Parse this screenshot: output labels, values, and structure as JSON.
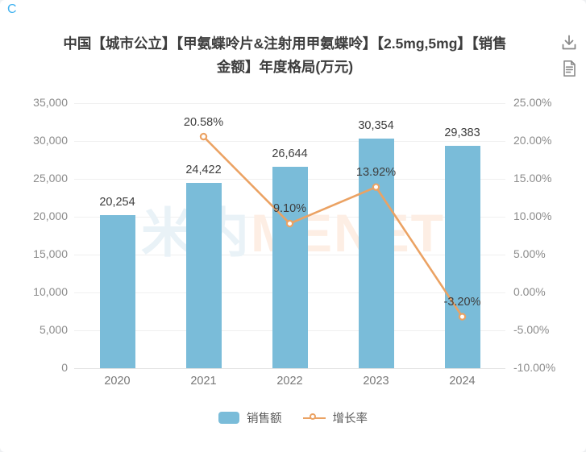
{
  "page": {
    "corner_label": "C"
  },
  "header": {
    "title_line1": "中国【城市公立】【甲氨蝶呤片&注射用甲氨蝶呤】【2.5mg,5mg】【销售",
    "title_line2": "金额】年度格局(万元)",
    "download_icon": "download-icon",
    "report_icon": "report-icon"
  },
  "watermark": {
    "cjk": "米内",
    "latin": "MENET"
  },
  "chart_data": {
    "type": "bar",
    "title": "中国【城市公立】【甲氨蝶呤片&注射用甲氨蝶呤】【2.5mg,5mg】【销售金额】年度格局(万元)",
    "categories": [
      "2020",
      "2021",
      "2022",
      "2023",
      "2024"
    ],
    "series": [
      {
        "name": "销售额",
        "type": "bar",
        "axis": "left",
        "color": "#7abcd9",
        "values": [
          20254,
          24422,
          26644,
          30354,
          29383
        ],
        "labels": [
          "20,254",
          "24,422",
          "26,644",
          "30,354",
          "29,383"
        ]
      },
      {
        "name": "增长率",
        "type": "line",
        "axis": "right",
        "color": "#eba263",
        "values": [
          null,
          20.58,
          9.1,
          13.92,
          -3.2
        ],
        "labels": [
          null,
          "20.58%",
          "9.10%",
          "13.92%",
          "-3.20%"
        ]
      }
    ],
    "left_axis": {
      "min": 0,
      "max": 35000,
      "step": 5000,
      "tick_labels": [
        "0",
        "5,000",
        "10,000",
        "15,000",
        "20,000",
        "25,000",
        "30,000",
        "35,000"
      ]
    },
    "right_axis": {
      "min": -10,
      "max": 25,
      "step": 5,
      "tick_labels": [
        "-10.00%",
        "-5.00%",
        "0.00%",
        "5.00%",
        "10.00%",
        "15.00%",
        "20.00%",
        "25.00%"
      ]
    },
    "grid": true,
    "legend_position": "bottom",
    "legend": [
      {
        "label": "销售额",
        "marker": "bar",
        "color": "#7abcd9"
      },
      {
        "label": "增长率",
        "marker": "line",
        "color": "#eba263"
      }
    ]
  }
}
